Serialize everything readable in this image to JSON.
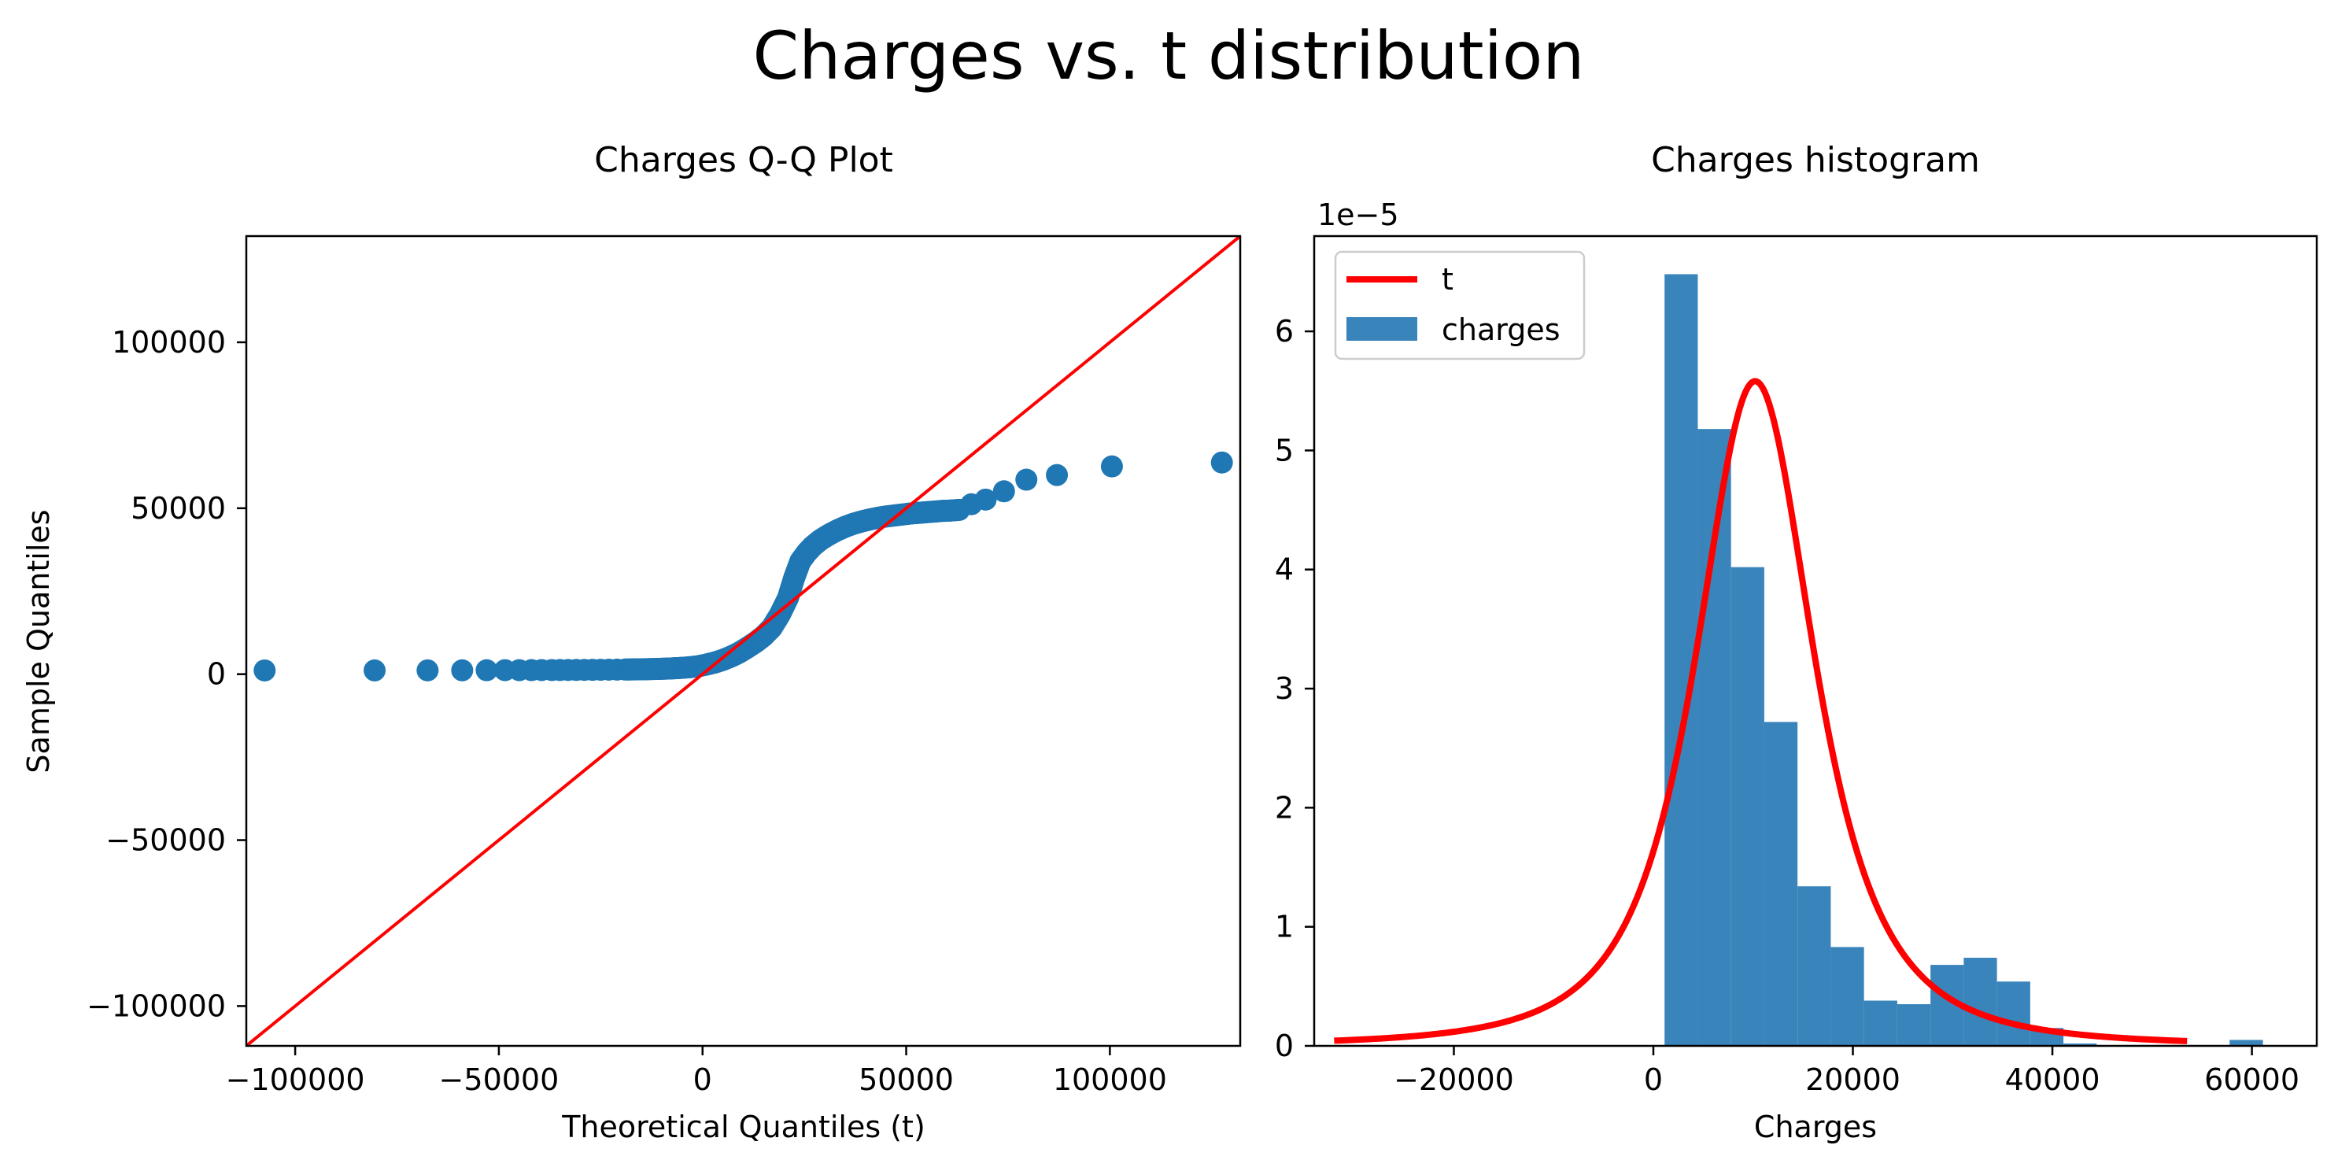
{
  "figure": {
    "title": "Charges vs. t distribution"
  },
  "chart_data": [
    {
      "type": "scatter",
      "title": "Charges Q-Q Plot",
      "xlabel": "Theoretical Quantiles (t)",
      "ylabel": "Sample Quantiles",
      "xlim": [
        -112000,
        132000
      ],
      "ylim": [
        -112000,
        132000
      ],
      "xticks": [
        -100000,
        -50000,
        0,
        50000,
        100000
      ],
      "xtick_labels": [
        "−100000",
        "−50000",
        "0",
        "50000",
        "100000"
      ],
      "yticks": [
        -100000,
        -50000,
        0,
        50000,
        100000
      ],
      "ytick_labels": [
        "−100000",
        "−50000",
        "0",
        "50000",
        "100000"
      ],
      "grid": false,
      "reference_line": {
        "slope": 1,
        "intercept": 0,
        "color": "#ff0000"
      },
      "series": [
        {
          "color": "#1f77b4",
          "points": [
            [
              -107500,
              1122
            ],
            [
              -80500,
              1136
            ],
            [
              -67500,
              1146
            ],
            [
              -59000,
              1164
            ],
            [
              -53000,
              1187
            ],
            [
              -48500,
              1200
            ],
            [
              -45000,
              1210
            ],
            [
              -42000,
              1220
            ],
            [
              -39500,
              1230
            ],
            [
              -37000,
              1240
            ],
            [
              -35000,
              1250
            ],
            [
              -33000,
              1260
            ],
            [
              -31000,
              1275
            ],
            [
              -29000,
              1290
            ],
            [
              -27000,
              1310
            ],
            [
              -25000,
              1330
            ],
            [
              -23000,
              1350
            ],
            [
              -21000,
              1370
            ],
            [
              -19000,
              1400
            ],
            [
              -17000,
              1430
            ],
            [
              -15000,
              1470
            ],
            [
              -13000,
              1520
            ],
            [
              -11000,
              1580
            ],
            [
              -9000,
              1660
            ],
            [
              -7000,
              1760
            ],
            [
              -5000,
              1900
            ],
            [
              -3000,
              2100
            ],
            [
              -1000,
              2400
            ],
            [
              1000,
              2900
            ],
            [
              3000,
              3500
            ],
            [
              5000,
              4300
            ],
            [
              7000,
              5300
            ],
            [
              9000,
              6500
            ],
            [
              11000,
              8000
            ],
            [
              13000,
              9600
            ],
            [
              15000,
              11500
            ],
            [
              17000,
              14000
            ],
            [
              19000,
              18000
            ],
            [
              21000,
              23000
            ],
            [
              22500,
              29000
            ],
            [
              24000,
              34000
            ],
            [
              25500,
              36500
            ],
            [
              27000,
              38500
            ],
            [
              29000,
              40500
            ],
            [
              31000,
              42000
            ],
            [
              33000,
              43300
            ],
            [
              35000,
              44400
            ],
            [
              37000,
              45300
            ],
            [
              39000,
              46000
            ],
            [
              41000,
              46600
            ],
            [
              43000,
              47100
            ],
            [
              45000,
              47500
            ],
            [
              47000,
              47800
            ],
            [
              49000,
              48100
            ],
            [
              51000,
              48400
            ],
            [
              53000,
              48600
            ],
            [
              55000,
              48800
            ],
            [
              57000,
              49000
            ],
            [
              59000,
              49200
            ],
            [
              61000,
              49300
            ],
            [
              63000,
              49500
            ],
            [
              66000,
              51200
            ],
            [
              69500,
              52600
            ],
            [
              74000,
              55100
            ],
            [
              79500,
              58600
            ],
            [
              87000,
              60000
            ],
            [
              100500,
              62600
            ],
            [
              127500,
              63770
            ]
          ]
        }
      ]
    },
    {
      "type": "bar",
      "title": "Charges histogram",
      "xlabel": "Charges",
      "ylabel": "",
      "y_scale_label": "1e−5",
      "xlim": [
        -34000,
        66500
      ],
      "ylim": [
        0,
        6.8e-05
      ],
      "xticks": [
        -20000,
        0,
        20000,
        40000,
        60000
      ],
      "xtick_labels": [
        "−20000",
        "0",
        "20000",
        "40000",
        "60000"
      ],
      "yticks": [
        0,
        1e-05,
        2e-05,
        3e-05,
        4e-05,
        5e-05,
        6e-05
      ],
      "ytick_labels": [
        "0",
        "1",
        "2",
        "3",
        "4",
        "5",
        "6"
      ],
      "legend": {
        "position": "upper-left",
        "entries": [
          "t",
          "charges"
        ]
      },
      "series": [
        {
          "name": "charges",
          "kind": "histogram",
          "color": "#3a84bc",
          "bin_edges": [
            1122,
            4454,
            7786,
            11118,
            14450,
            17783,
            21115,
            24447,
            27779,
            31111,
            34443,
            37776,
            41108,
            44440,
            47772,
            51104,
            54436,
            57768,
            61101,
            64433
          ],
          "densities": [
            6.48e-05,
            5.18e-05,
            4.02e-05,
            2.72e-05,
            1.34e-05,
            8.3e-06,
            3.8e-06,
            3.5e-06,
            6.8e-06,
            7.4e-06,
            5.4e-06,
            1.5e-06,
            2e-07,
            0.0,
            0.0,
            0.0,
            0.0,
            5e-07,
            0.0
          ]
        },
        {
          "name": "t",
          "kind": "line",
          "color": "#ff0000",
          "x_range": [
            -32000,
            53500
          ],
          "params": {
            "df": 2.2,
            "loc": 10200,
            "scale": 6400
          }
        }
      ]
    }
  ]
}
